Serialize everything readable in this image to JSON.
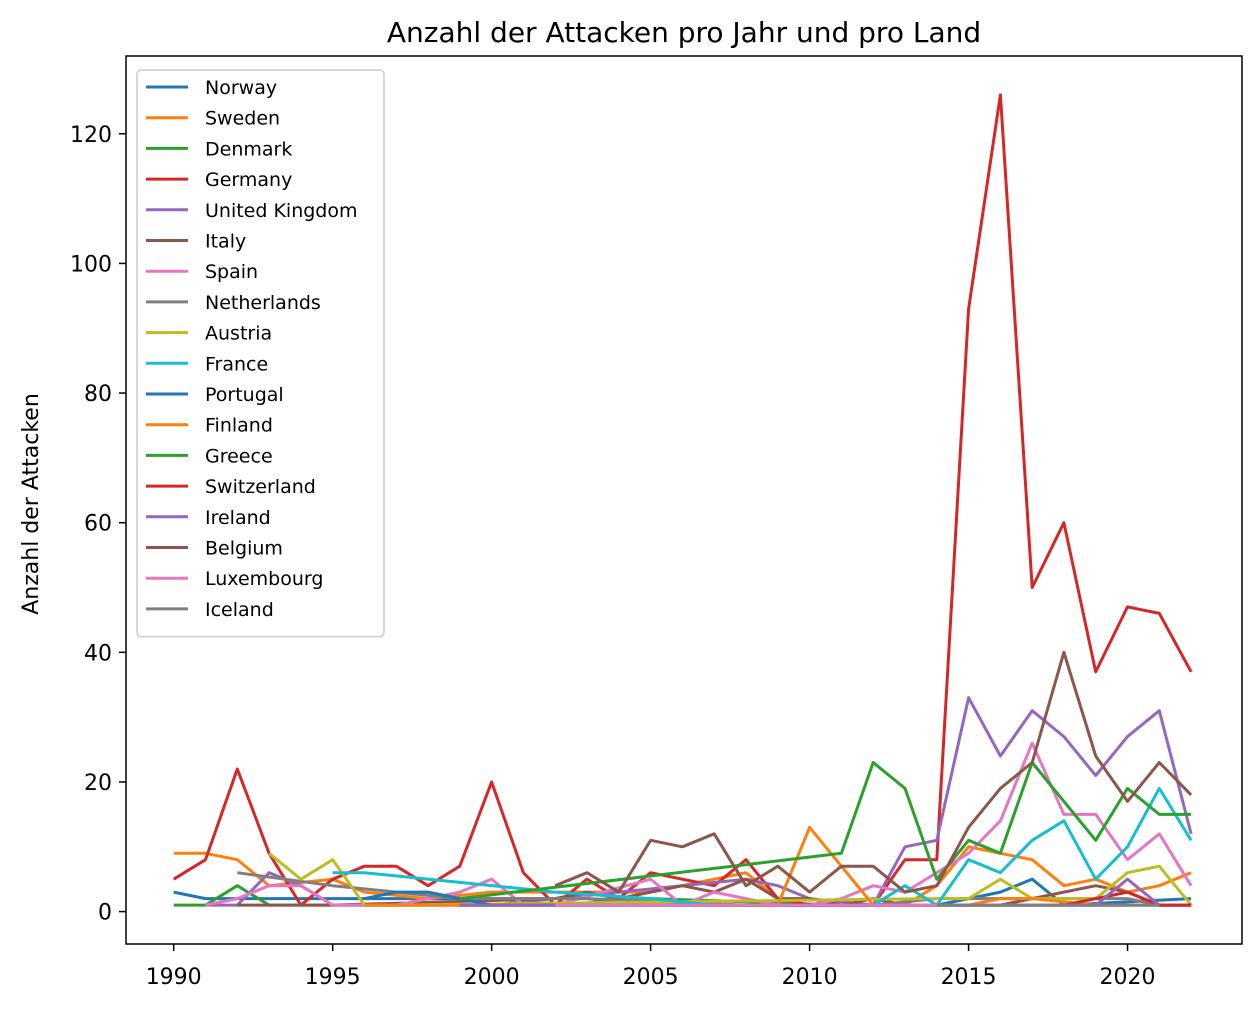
{
  "chart_data": {
    "type": "line",
    "title": "Anzahl der Attacken pro Jahr und pro Land",
    "xlabel": "",
    "ylabel": "Anzahl der Attacken",
    "xlim": [
      1988.5,
      2023.6
    ],
    "ylim": [
      -5,
      132
    ],
    "xticks": [
      1990,
      1995,
      2000,
      2005,
      2010,
      2015,
      2020
    ],
    "yticks": [
      0,
      20,
      40,
      60,
      80,
      100,
      120
    ],
    "grid": false,
    "legend_position": "top-left",
    "series": [
      {
        "name": "Norway",
        "color": "#1f77b4",
        "x": [
          1990,
          1991,
          1995,
          2003,
          2005,
          2010,
          2014,
          2016,
          2017,
          2018,
          2022
        ],
        "y": [
          3,
          2,
          2,
          2,
          1,
          1,
          1,
          3,
          5,
          1,
          2
        ]
      },
      {
        "name": "Sweden",
        "color": "#ff7f0e",
        "x": [
          1990,
          1991,
          1992,
          1993,
          1995,
          1996,
          1998,
          2000,
          2003,
          2005,
          2008,
          2009,
          2010,
          2013,
          2014,
          2015,
          2016,
          2017,
          2018,
          2019,
          2020,
          2021,
          2022
        ],
        "y": [
          9,
          9,
          8,
          4,
          5,
          3,
          2,
          3,
          3,
          3,
          6,
          2,
          1,
          1,
          4,
          10,
          9,
          8,
          4,
          5,
          3,
          4,
          6
        ]
      },
      {
        "name": "Denmark",
        "color": "#2ca02c",
        "x": [
          1990,
          1991,
          1992,
          1993,
          2000,
          2002,
          2005,
          2011,
          2012
        ],
        "y": [
          1,
          1,
          4,
          1,
          1,
          1,
          2,
          1,
          1
        ]
      },
      {
        "name": "Germany",
        "color": "#d62728",
        "x": [
          1990,
          1991,
          1992,
          1993,
          1994,
          1995,
          1996,
          1997,
          1998,
          1999,
          2000,
          2001,
          2002,
          2003,
          2004,
          2005,
          2006,
          2007,
          2008,
          2009,
          2010,
          2011,
          2012,
          2013,
          2014,
          2015,
          2016,
          2017,
          2018,
          2019,
          2020,
          2021,
          2022
        ],
        "y": [
          5,
          8,
          22,
          9,
          1,
          5,
          7,
          7,
          4,
          7,
          20,
          6,
          1,
          5,
          2,
          6,
          5,
          4,
          8,
          2,
          1,
          1,
          1,
          8,
          8,
          93,
          126,
          50,
          60,
          37,
          47,
          46,
          37
        ]
      },
      {
        "name": "United Kingdom",
        "color": "#9467bd",
        "x": [
          1991,
          1992,
          1993,
          1994,
          1995,
          2000,
          2008,
          2009,
          2010,
          2012,
          2013,
          2014,
          2015,
          2016,
          2017,
          2018,
          2019,
          2020,
          2021,
          2022
        ],
        "y": [
          1,
          1,
          6,
          4,
          1,
          1,
          5,
          4,
          2,
          1,
          10,
          11,
          33,
          24,
          31,
          27,
          21,
          27,
          31,
          12
        ]
      },
      {
        "name": "Italy",
        "color": "#8c564b",
        "x": [
          1992,
          1993,
          1995,
          2002,
          2003,
          2004,
          2005,
          2006,
          2007,
          2008,
          2009,
          2010,
          2011,
          2012,
          2013,
          2014,
          2015,
          2016,
          2017,
          2018,
          2019,
          2020,
          2021,
          2022
        ],
        "y": [
          1,
          1,
          1,
          2,
          3,
          2,
          3,
          4,
          3,
          5,
          2,
          2,
          1,
          2,
          1,
          1,
          1,
          1,
          2,
          3,
          4,
          3,
          1,
          1
        ]
      },
      {
        "name": "Spain",
        "color": "#e377c2",
        "x": [
          1991,
          1992,
          1993,
          1994,
          1995,
          1996,
          1997,
          1998,
          1999,
          2000,
          2001,
          2002,
          2005,
          2006,
          2007,
          2008,
          2009,
          2010,
          2011,
          2012,
          2013,
          2014,
          2015,
          2016,
          2017,
          2018,
          2019,
          2020,
          2021,
          2022
        ],
        "y": [
          1,
          2,
          4,
          4,
          1,
          1,
          1,
          2,
          3,
          5,
          1,
          1,
          5,
          1,
          3,
          2,
          1,
          1,
          2,
          4,
          3,
          6,
          9,
          14,
          26,
          15,
          15,
          8,
          12,
          4
        ]
      },
      {
        "name": "Netherlands",
        "color": "#7f7f7f",
        "x": [
          1992,
          1995,
          1997,
          1999,
          2001,
          2003,
          2008,
          2012,
          2014,
          2016,
          2018,
          2020,
          2021,
          2022
        ],
        "y": [
          6,
          4,
          3,
          2,
          2,
          2,
          1,
          1,
          2,
          2,
          2,
          2,
          1,
          1
        ]
      },
      {
        "name": "Austria",
        "color": "#bcbd22",
        "x": [
          1993,
          1994,
          1995,
          1996,
          1997,
          2014,
          2015,
          2016,
          2017,
          2018,
          2019,
          2020,
          2021,
          2022
        ],
        "y": [
          9,
          5,
          8,
          1,
          1,
          2,
          2,
          5,
          2,
          2,
          2,
          6,
          7,
          1
        ]
      },
      {
        "name": "France",
        "color": "#17becf",
        "x": [
          1995,
          1996,
          2002,
          2005,
          2007,
          2008,
          2010,
          2011,
          2012,
          2013,
          2014,
          2015,
          2016,
          2017,
          2018,
          2019,
          2020,
          2021,
          2022
        ],
        "y": [
          6,
          6,
          3,
          2,
          1,
          1,
          1,
          1,
          1,
          4,
          1,
          8,
          6,
          11,
          14,
          5,
          10,
          19,
          11
        ]
      },
      {
        "name": "Portugal",
        "color": "#1f77b4",
        "x": [
          1996,
          1997,
          1998,
          2000,
          2005,
          2010,
          2015,
          2020,
          2022
        ],
        "y": [
          2,
          3,
          3,
          1,
          1,
          1,
          1,
          1,
          1
        ]
      },
      {
        "name": "Finland",
        "color": "#ff7f0e",
        "x": [
          1996,
          1997,
          1999,
          2005,
          2007,
          2009,
          2010,
          2011,
          2012,
          2013,
          2014,
          2015,
          2016,
          2017,
          2019,
          2020,
          2021,
          2022
        ],
        "y": [
          1,
          1,
          1,
          1,
          1,
          1,
          13,
          7,
          1,
          1,
          1,
          1,
          2,
          2,
          1,
          1,
          1,
          1
        ]
      },
      {
        "name": "Greece",
        "color": "#2ca02c",
        "x": [
          1999,
          2011,
          2012,
          2013,
          2014,
          2015,
          2016,
          2017,
          2018,
          2019,
          2020,
          2021,
          2022
        ],
        "y": [
          2,
          9,
          23,
          19,
          5,
          11,
          9,
          23,
          17,
          11,
          19,
          15,
          15
        ]
      },
      {
        "name": "Switzerland",
        "color": "#d62728",
        "x": [
          1999,
          2003,
          2013,
          2018,
          2020,
          2021,
          2022
        ],
        "y": [
          1,
          1,
          1,
          1,
          3,
          1,
          1
        ]
      },
      {
        "name": "Ireland",
        "color": "#9467bd",
        "x": [
          1999,
          2002,
          2007,
          2012,
          2014,
          2017,
          2019,
          2020,
          2021
        ],
        "y": [
          1,
          1,
          1,
          1,
          1,
          1,
          1,
          5,
          1
        ]
      },
      {
        "name": "Belgium",
        "color": "#8c564b",
        "x": [
          2002,
          2003,
          2004,
          2005,
          2006,
          2007,
          2008,
          2009,
          2010,
          2011,
          2012,
          2013,
          2014,
          2015,
          2016,
          2017,
          2018,
          2019,
          2020,
          2021,
          2022
        ],
        "y": [
          4,
          6,
          3,
          11,
          10,
          12,
          4,
          7,
          3,
          7,
          7,
          3,
          4,
          13,
          19,
          23,
          40,
          24,
          17,
          23,
          18
        ]
      },
      {
        "name": "Luxembourg",
        "color": "#e377c2",
        "x": [
          2002,
          2006,
          2012,
          2016,
          2020
        ],
        "y": [
          1,
          1,
          1,
          1,
          1
        ]
      },
      {
        "name": "Iceland",
        "color": "#7f7f7f",
        "x": [
          2014,
          2016,
          2018,
          2021
        ],
        "y": [
          1,
          1,
          1,
          1
        ]
      }
    ]
  }
}
